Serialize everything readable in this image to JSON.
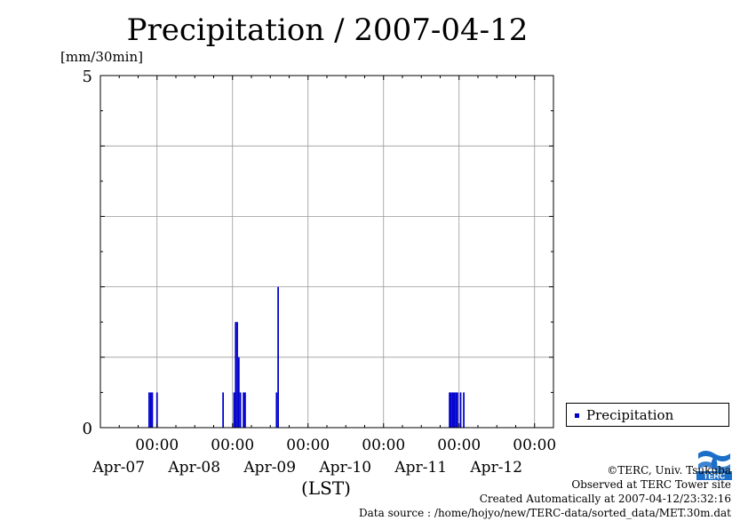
{
  "chart_data": {
    "type": "bar",
    "title": "Precipitation / 2007-04-12",
    "ylabel": "[mm/30min]",
    "xlabel": "(LST)",
    "ylim": [
      0,
      5
    ],
    "y_ticks": [
      "0",
      "5"
    ],
    "x_range_hours": [
      -18,
      126
    ],
    "x_ticks": [
      {
        "hour": 0,
        "time": "00:00",
        "date": "Apr-07"
      },
      {
        "hour": 24,
        "time": "00:00",
        "date": "Apr-08"
      },
      {
        "hour": 48,
        "time": "00:00",
        "date": "Apr-09"
      },
      {
        "hour": 72,
        "time": "00:00",
        "date": "Apr-10"
      },
      {
        "hour": 96,
        "time": "00:00",
        "date": "Apr-11"
      },
      {
        "hour": 120,
        "time": "00:00",
        "date": "Apr-12"
      }
    ],
    "grid": true,
    "legend_position": "right",
    "series": [
      {
        "name": "Precipitation",
        "color": "#0000cc",
        "points": [
          {
            "hour": -2.5,
            "value": 0.5
          },
          {
            "hour": -2.0,
            "value": 0.5
          },
          {
            "hour": -1.5,
            "value": 0.5
          },
          {
            "hour": 0.0,
            "value": 0.5
          },
          {
            "hour": 21.0,
            "value": 0.5
          },
          {
            "hour": 24.5,
            "value": 0.5
          },
          {
            "hour": 25.0,
            "value": 1.5
          },
          {
            "hour": 25.5,
            "value": 1.5
          },
          {
            "hour": 26.0,
            "value": 1.0
          },
          {
            "hour": 26.5,
            "value": 0.5
          },
          {
            "hour": 27.5,
            "value": 0.5
          },
          {
            "hour": 28.0,
            "value": 0.5
          },
          {
            "hour": 38.0,
            "value": 0.5
          },
          {
            "hour": 38.5,
            "value": 2.0
          },
          {
            "hour": 93.0,
            "value": 0.5
          },
          {
            "hour": 93.5,
            "value": 0.5
          },
          {
            "hour": 94.0,
            "value": 0.5
          },
          {
            "hour": 94.5,
            "value": 0.5
          },
          {
            "hour": 95.0,
            "value": 0.5
          },
          {
            "hour": 95.5,
            "value": 0.5
          },
          {
            "hour": 96.5,
            "value": 0.5
          },
          {
            "hour": 97.5,
            "value": 0.5
          }
        ]
      }
    ]
  },
  "footer": {
    "copyright": "©TERC, Univ. Tsukuba",
    "observed": "Observed at TERC Tower site",
    "created": "Created Automatically at 2007-04-12/23:32:16",
    "source": "Data source : /home/hojyo/new/TERC-data/sorted_data/MET.30m.dat"
  },
  "logo": {
    "text": "TERC",
    "color": "#1c6fc9"
  }
}
